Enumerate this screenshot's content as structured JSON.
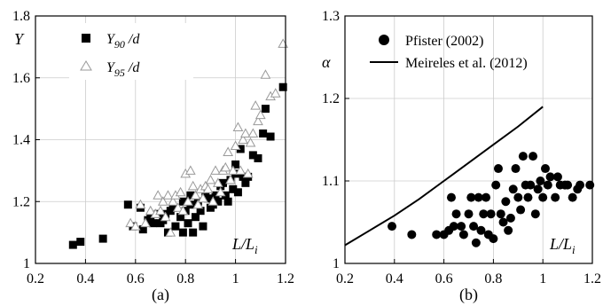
{
  "chart_data": [
    {
      "type": "scatter",
      "panel_label": "(a)",
      "xlabel": "L/L",
      "xlabel_sub": "i",
      "ylabel": "Y",
      "xlim": [
        0.2,
        1.2
      ],
      "ylim": [
        1.0,
        1.8
      ],
      "xticks": [
        "0.2",
        "0.4",
        "0.6",
        "0.8",
        "1",
        "1.2"
      ],
      "yticks": [
        "1",
        "1.2",
        "1.4",
        "1.6",
        "1.8"
      ],
      "grid": true,
      "legend_position": "top-left",
      "series": [
        {
          "name": "Y90/d",
          "label_main": "Y",
          "label_sub": "90",
          "label_tail": " /d",
          "marker": "filled-square",
          "color": "#000000",
          "points": [
            [
              0.35,
              1.06
            ],
            [
              0.38,
              1.07
            ],
            [
              0.47,
              1.08
            ],
            [
              0.57,
              1.19
            ],
            [
              0.59,
              1.12
            ],
            [
              0.62,
              1.18
            ],
            [
              0.63,
              1.11
            ],
            [
              0.65,
              1.14
            ],
            [
              0.66,
              1.15
            ],
            [
              0.67,
              1.13
            ],
            [
              0.69,
              1.16
            ],
            [
              0.7,
              1.13
            ],
            [
              0.71,
              1.14
            ],
            [
              0.72,
              1.16
            ],
            [
              0.73,
              1.1
            ],
            [
              0.74,
              1.17
            ],
            [
              0.75,
              1.18
            ],
            [
              0.76,
              1.12
            ],
            [
              0.78,
              1.15
            ],
            [
              0.79,
              1.1
            ],
            [
              0.79,
              1.2
            ],
            [
              0.8,
              1.17
            ],
            [
              0.81,
              1.13
            ],
            [
              0.82,
              1.19
            ],
            [
              0.82,
              1.22
            ],
            [
              0.83,
              1.1
            ],
            [
              0.84,
              1.15
            ],
            [
              0.85,
              1.2
            ],
            [
              0.86,
              1.17
            ],
            [
              0.87,
              1.12
            ],
            [
              0.88,
              1.23
            ],
            [
              0.89,
              1.21
            ],
            [
              0.9,
              1.18
            ],
            [
              0.91,
              1.19
            ],
            [
              0.92,
              1.22
            ],
            [
              0.93,
              1.2
            ],
            [
              0.94,
              1.25
            ],
            [
              0.95,
              1.26
            ],
            [
              0.96,
              1.22
            ],
            [
              0.97,
              1.2
            ],
            [
              0.98,
              1.27
            ],
            [
              0.99,
              1.24
            ],
            [
              1.0,
              1.29
            ],
            [
              1.0,
              1.32
            ],
            [
              1.01,
              1.23
            ],
            [
              1.02,
              1.37
            ],
            [
              1.03,
              1.28
            ],
            [
              1.04,
              1.26
            ],
            [
              1.05,
              1.28
            ],
            [
              1.07,
              1.35
            ],
            [
              1.09,
              1.34
            ],
            [
              1.11,
              1.42
            ],
            [
              1.12,
              1.5
            ],
            [
              1.14,
              1.41
            ],
            [
              1.19,
              1.57
            ]
          ]
        },
        {
          "name": "Y95/d",
          "label_main": "Y",
          "label_sub": "95",
          "label_tail": " /d",
          "marker": "open-triangle",
          "color": "#999999",
          "points": [
            [
              0.58,
              1.13
            ],
            [
              0.6,
              1.12
            ],
            [
              0.62,
              1.19
            ],
            [
              0.64,
              1.13
            ],
            [
              0.66,
              1.17
            ],
            [
              0.68,
              1.16
            ],
            [
              0.69,
              1.22
            ],
            [
              0.7,
              1.17
            ],
            [
              0.71,
              1.2
            ],
            [
              0.72,
              1.15
            ],
            [
              0.73,
              1.22
            ],
            [
              0.74,
              1.1
            ],
            [
              0.75,
              1.2
            ],
            [
              0.76,
              1.22
            ],
            [
              0.77,
              1.18
            ],
            [
              0.78,
              1.23
            ],
            [
              0.79,
              1.17
            ],
            [
              0.8,
              1.29
            ],
            [
              0.81,
              1.2
            ],
            [
              0.82,
              1.3
            ],
            [
              0.83,
              1.25
            ],
            [
              0.84,
              1.22
            ],
            [
              0.85,
              1.19
            ],
            [
              0.86,
              1.24
            ],
            [
              0.87,
              1.21
            ],
            [
              0.88,
              1.25
            ],
            [
              0.89,
              1.24
            ],
            [
              0.9,
              1.27
            ],
            [
              0.91,
              1.2
            ],
            [
              0.92,
              1.3
            ],
            [
              0.93,
              1.26
            ],
            [
              0.94,
              1.23
            ],
            [
              0.95,
              1.3
            ],
            [
              0.96,
              1.31
            ],
            [
              0.97,
              1.36
            ],
            [
              0.98,
              1.27
            ],
            [
              0.99,
              1.3
            ],
            [
              1.0,
              1.38
            ],
            [
              1.01,
              1.44
            ],
            [
              1.02,
              1.3
            ],
            [
              1.03,
              1.4
            ],
            [
              1.04,
              1.42
            ],
            [
              1.05,
              1.29
            ],
            [
              1.06,
              1.39
            ],
            [
              1.07,
              1.42
            ],
            [
              1.08,
              1.51
            ],
            [
              1.09,
              1.46
            ],
            [
              1.1,
              1.48
            ],
            [
              1.12,
              1.61
            ],
            [
              1.14,
              1.54
            ],
            [
              1.16,
              1.55
            ],
            [
              1.19,
              1.71
            ]
          ]
        }
      ]
    },
    {
      "type": "scatter",
      "panel_label": "(b)",
      "xlabel": "L/L",
      "xlabel_sub": "i",
      "ylabel": "α",
      "xlim": [
        0.2,
        1.2
      ],
      "ylim": [
        1.0,
        1.3
      ],
      "xticks": [
        "0.2",
        "0.4",
        "0.6",
        "0.8",
        "1",
        "1.2"
      ],
      "yticks": [
        "1",
        "1.1",
        "1.2",
        "1.3"
      ],
      "grid": true,
      "legend_position": "top-right",
      "series": [
        {
          "name": "Pfister (2002)",
          "marker": "filled-circle",
          "color": "#000000",
          "points": [
            [
              0.39,
              1.045
            ],
            [
              0.47,
              1.035
            ],
            [
              0.57,
              1.035
            ],
            [
              0.6,
              1.035
            ],
            [
              0.62,
              1.04
            ],
            [
              0.63,
              1.08
            ],
            [
              0.64,
              1.045
            ],
            [
              0.65,
              1.06
            ],
            [
              0.67,
              1.045
            ],
            [
              0.68,
              1.035
            ],
            [
              0.7,
              1.06
            ],
            [
              0.71,
              1.08
            ],
            [
              0.72,
              1.045
            ],
            [
              0.73,
              1.025
            ],
            [
              0.74,
              1.08
            ],
            [
              0.75,
              1.04
            ],
            [
              0.76,
              1.06
            ],
            [
              0.77,
              1.08
            ],
            [
              0.78,
              1.035
            ],
            [
              0.79,
              1.06
            ],
            [
              0.8,
              1.03
            ],
            [
              0.81,
              1.095
            ],
            [
              0.82,
              1.115
            ],
            [
              0.83,
              1.06
            ],
            [
              0.84,
              1.05
            ],
            [
              0.85,
              1.075
            ],
            [
              0.86,
              1.04
            ],
            [
              0.87,
              1.055
            ],
            [
              0.88,
              1.09
            ],
            [
              0.89,
              1.115
            ],
            [
              0.9,
              1.08
            ],
            [
              0.91,
              1.065
            ],
            [
              0.92,
              1.13
            ],
            [
              0.93,
              1.095
            ],
            [
              0.94,
              1.08
            ],
            [
              0.95,
              1.095
            ],
            [
              0.96,
              1.13
            ],
            [
              0.97,
              1.06
            ],
            [
              0.98,
              1.09
            ],
            [
              0.99,
              1.1
            ],
            [
              1.0,
              1.08
            ],
            [
              1.01,
              1.115
            ],
            [
              1.02,
              1.095
            ],
            [
              1.03,
              1.105
            ],
            [
              1.05,
              1.08
            ],
            [
              1.06,
              1.105
            ],
            [
              1.07,
              1.095
            ],
            [
              1.09,
              1.095
            ],
            [
              1.1,
              1.095
            ],
            [
              1.12,
              1.08
            ],
            [
              1.14,
              1.09
            ],
            [
              1.15,
              1.095
            ],
            [
              1.19,
              1.095
            ]
          ]
        },
        {
          "name": "Meireles et al. (2012)",
          "marker": "line",
          "color": "#000000",
          "points": [
            [
              0.2,
              1.022
            ],
            [
              0.3,
              1.04
            ],
            [
              0.4,
              1.058
            ],
            [
              0.5,
              1.078
            ],
            [
              0.6,
              1.1
            ],
            [
              0.7,
              1.122
            ],
            [
              0.8,
              1.144
            ],
            [
              0.9,
              1.166
            ],
            [
              1.0,
              1.19
            ]
          ]
        }
      ]
    }
  ]
}
